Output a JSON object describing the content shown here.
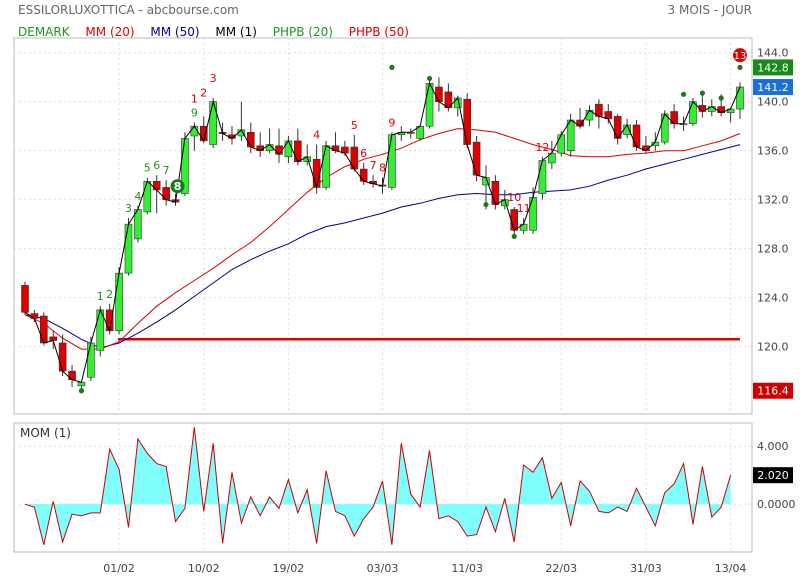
{
  "header": {
    "title": "ESSILORLUXOTTICA - abcbourse.com",
    "period": "3 MOIS - JOUR"
  },
  "legend": [
    {
      "label": "DEMARK",
      "color": "#1a9a1a"
    },
    {
      "label": "MM (20)",
      "color": "#dd0000"
    },
    {
      "label": "MM (50)",
      "color": "#00008b"
    },
    {
      "label": "MM (1)",
      "color": "#000000"
    },
    {
      "label": "PHPB (20)",
      "color": "#1a9a1a"
    },
    {
      "label": "PHPB (50)",
      "color": "#dd0000"
    }
  ],
  "colors": {
    "up": "#33ee33",
    "down": "#dd0000",
    "mm20": "#dd0000",
    "mm50": "#00008b",
    "mm1": "#000000",
    "mom_fill": "#80ffff",
    "mom_line": "#cc0000",
    "grid": "#dddddd"
  },
  "chart_data": [
    {
      "type": "candlestick",
      "title": "ESSILORLUXOTTICA",
      "yticks": [
        "144.0",
        "140.0",
        "136.0",
        "132.0",
        "128.0",
        "124.0",
        "120.0"
      ],
      "ylim": [
        114.5,
        145.2
      ],
      "xtick_labels": [
        {
          "label": "01/02",
          "index": 10
        },
        {
          "label": "10/02",
          "index": 19
        },
        {
          "label": "19/02",
          "index": 28
        },
        {
          "label": "03/03",
          "index": 38
        },
        {
          "label": "11/03",
          "index": 47
        },
        {
          "label": "22/03",
          "index": 57
        },
        {
          "label": "31/03",
          "index": 66
        },
        {
          "label": "13/04",
          "index": 75
        }
      ],
      "last_labels": [
        {
          "text": "142.8",
          "color": "#1a8a1a"
        },
        {
          "text": "141.2",
          "color": "#1a6fd8"
        },
        {
          "text": "116.4",
          "color": "#cc0000"
        }
      ],
      "support_level": 120.6,
      "ohlc": [
        [
          125.0,
          125.3,
          122.6,
          122.8
        ],
        [
          122.7,
          123.0,
          122.0,
          122.3
        ],
        [
          122.5,
          122.8,
          120.1,
          120.3
        ],
        [
          120.8,
          121.3,
          119.8,
          120.5
        ],
        [
          120.3,
          121.0,
          117.6,
          118.0
        ],
        [
          118.0,
          118.5,
          116.7,
          117.3
        ],
        [
          116.8,
          117.2,
          116.4,
          117.1
        ],
        [
          117.5,
          120.8,
          117.2,
          120.3
        ],
        [
          119.7,
          123.3,
          119.2,
          123.0
        ],
        [
          123.0,
          123.5,
          121.0,
          121.3
        ],
        [
          121.3,
          126.5,
          121.0,
          126.0
        ],
        [
          126.0,
          130.5,
          125.8,
          130.0
        ],
        [
          128.8,
          131.5,
          128.5,
          131.2
        ],
        [
          131.0,
          133.8,
          130.8,
          133.5
        ],
        [
          133.5,
          134.0,
          130.9,
          132.8
        ],
        [
          133.0,
          133.6,
          131.5,
          132.0
        ],
        [
          132.0,
          132.5,
          131.5,
          131.8
        ],
        [
          132.5,
          137.5,
          132.3,
          137.0
        ],
        [
          137.2,
          138.3,
          136.0,
          138.0
        ],
        [
          138.0,
          138.8,
          136.6,
          136.8
        ],
        [
          136.5,
          140.3,
          136.2,
          140.0
        ],
        [
          137.5,
          138.3,
          136.8,
          137.4
        ],
        [
          137.3,
          138.0,
          136.5,
          137.0
        ],
        [
          137.2,
          140.0,
          136.8,
          137.7
        ],
        [
          137.5,
          138.3,
          135.8,
          136.3
        ],
        [
          136.4,
          137.5,
          135.5,
          136.0
        ],
        [
          136.0,
          137.8,
          135.8,
          136.5
        ],
        [
          136.4,
          137.8,
          135.0,
          135.7
        ],
        [
          135.5,
          137.2,
          135.0,
          136.8
        ],
        [
          136.8,
          137.8,
          134.8,
          135.1
        ],
        [
          135.1,
          136.5,
          134.8,
          135.5
        ],
        [
          135.3,
          136.5,
          132.5,
          133.0
        ],
        [
          133.0,
          136.8,
          132.8,
          136.4
        ],
        [
          136.4,
          137.5,
          135.8,
          136.0
        ],
        [
          136.3,
          136.8,
          135.6,
          135.8
        ],
        [
          136.3,
          137.3,
          134.3,
          134.5
        ],
        [
          134.5,
          135.0,
          133.2,
          133.5
        ],
        [
          133.5,
          134.0,
          133.0,
          133.3
        ],
        [
          133.2,
          133.8,
          132.5,
          133.1
        ],
        [
          133.0,
          137.5,
          132.8,
          137.3
        ],
        [
          137.3,
          138.0,
          136.8,
          137.5
        ],
        [
          137.4,
          137.8,
          137.0,
          137.5
        ],
        [
          137.0,
          138.0,
          136.8,
          138.0
        ],
        [
          138.0,
          141.8,
          137.8,
          141.5
        ],
        [
          141.2,
          142.0,
          139.2,
          140.0
        ],
        [
          140.8,
          141.5,
          139.2,
          139.5
        ],
        [
          139.5,
          140.5,
          138.8,
          140.3
        ],
        [
          140.2,
          140.7,
          136.2,
          136.5
        ],
        [
          136.7,
          137.2,
          133.5,
          134.0
        ],
        [
          133.2,
          134.8,
          131.2,
          133.8
        ],
        [
          133.5,
          134.0,
          131.2,
          131.6
        ],
        [
          131.5,
          132.8,
          131.2,
          132.0
        ],
        [
          131.2,
          131.4,
          128.8,
          129.5
        ],
        [
          129.5,
          130.5,
          129.2,
          130.0
        ],
        [
          129.5,
          133.0,
          129.2,
          132.2
        ],
        [
          132.5,
          135.5,
          132.0,
          135.2
        ],
        [
          135.0,
          136.8,
          134.5,
          135.8
        ],
        [
          135.8,
          137.6,
          135.5,
          137.3
        ],
        [
          136.0,
          139.0,
          135.5,
          138.5
        ],
        [
          138.5,
          139.5,
          137.8,
          138.0
        ],
        [
          138.5,
          139.7,
          138.0,
          139.3
        ],
        [
          139.8,
          140.2,
          137.8,
          138.8
        ],
        [
          139.2,
          139.8,
          138.2,
          138.6
        ],
        [
          138.8,
          139.0,
          136.5,
          137.0
        ],
        [
          137.3,
          138.6,
          137.0,
          138.1
        ],
        [
          138.1,
          138.5,
          136.0,
          136.3
        ],
        [
          136.4,
          137.2,
          135.8,
          136.0
        ],
        [
          136.4,
          137.5,
          136.0,
          136.7
        ],
        [
          136.7,
          139.3,
          136.5,
          139.0
        ],
        [
          139.2,
          139.8,
          137.8,
          138.2
        ],
        [
          138.2,
          138.8,
          137.6,
          138.2
        ],
        [
          138.2,
          140.3,
          138.0,
          140.0
        ],
        [
          139.7,
          140.5,
          138.7,
          139.2
        ],
        [
          139.2,
          140.2,
          138.8,
          139.6
        ],
        [
          139.6,
          140.6,
          138.8,
          139.1
        ],
        [
          139.1,
          139.5,
          138.3,
          139.4
        ],
        [
          139.4,
          141.6,
          138.6,
          141.2
        ]
      ],
      "mm20": [
        [
          0,
          122.6
        ],
        [
          2,
          121.9
        ],
        [
          4,
          120.7
        ],
        [
          6,
          119.8
        ],
        [
          8,
          119.8
        ],
        [
          10,
          120.4
        ],
        [
          12,
          121.9
        ],
        [
          14,
          123.3
        ],
        [
          16,
          124.4
        ],
        [
          18,
          125.4
        ],
        [
          20,
          126.4
        ],
        [
          22,
          127.5
        ],
        [
          24,
          128.5
        ],
        [
          26,
          129.8
        ],
        [
          28,
          131.2
        ],
        [
          30,
          132.6
        ],
        [
          32,
          133.8
        ],
        [
          34,
          134.7
        ],
        [
          36,
          135.3
        ],
        [
          38,
          135.7
        ],
        [
          40,
          136.2
        ],
        [
          42,
          136.9
        ],
        [
          44,
          137.4
        ],
        [
          46,
          137.8
        ],
        [
          48,
          137.7
        ],
        [
          50,
          137.5
        ],
        [
          52,
          137.0
        ],
        [
          54,
          136.5
        ],
        [
          56,
          136.1
        ],
        [
          58,
          135.6
        ],
        [
          60,
          135.5
        ],
        [
          62,
          135.5
        ],
        [
          64,
          135.7
        ],
        [
          66,
          135.8
        ],
        [
          68,
          136.0
        ],
        [
          70,
          136.0
        ],
        [
          72,
          136.4
        ],
        [
          74,
          136.8
        ],
        [
          76,
          137.4
        ]
      ],
      "mm50": [
        [
          0,
          122.6
        ],
        [
          2,
          122.3
        ],
        [
          4,
          121.5
        ],
        [
          6,
          120.6
        ],
        [
          8,
          119.9
        ],
        [
          10,
          120.3
        ],
        [
          12,
          121.1
        ],
        [
          14,
          122.0
        ],
        [
          16,
          123.0
        ],
        [
          18,
          124.1
        ],
        [
          20,
          125.2
        ],
        [
          22,
          126.3
        ],
        [
          24,
          127.1
        ],
        [
          26,
          127.8
        ],
        [
          28,
          128.4
        ],
        [
          30,
          129.2
        ],
        [
          32,
          129.8
        ],
        [
          34,
          130.1
        ],
        [
          36,
          130.5
        ],
        [
          38,
          130.9
        ],
        [
          40,
          131.4
        ],
        [
          42,
          131.7
        ],
        [
          44,
          132.1
        ],
        [
          46,
          132.4
        ],
        [
          48,
          132.5
        ],
        [
          50,
          132.4
        ],
        [
          52,
          132.4
        ],
        [
          54,
          132.6
        ],
        [
          56,
          132.7
        ],
        [
          58,
          132.8
        ],
        [
          60,
          133.1
        ],
        [
          62,
          133.6
        ],
        [
          64,
          134.0
        ],
        [
          66,
          134.5
        ],
        [
          68,
          134.9
        ],
        [
          70,
          135.3
        ],
        [
          72,
          135.7
        ],
        [
          74,
          136.1
        ],
        [
          76,
          136.5
        ]
      ],
      "demark": [
        [
          8,
          "1",
          "#1a9a1a",
          "above"
        ],
        [
          9,
          "2",
          "#1a9a1a",
          "above"
        ],
        [
          11,
          "3",
          "#1a9a1a",
          "above"
        ],
        [
          12,
          "4",
          "#1a9a1a",
          "above"
        ],
        [
          13,
          "5",
          "#1a9a1a",
          "above"
        ],
        [
          14,
          "6",
          "#1a9a1a",
          "above"
        ],
        [
          15,
          "7",
          "#1a9a1a",
          "above"
        ],
        [
          18,
          "9",
          "#1a9a1a",
          "above"
        ],
        [
          18,
          "1",
          "#dd0000",
          "above2"
        ],
        [
          19,
          "2",
          "#dd0000",
          "above2"
        ],
        [
          20,
          "3",
          "#dd0000",
          "above3"
        ],
        [
          31,
          "4",
          "#dd0000",
          "above"
        ],
        [
          35,
          "5",
          "#dd0000",
          "above"
        ],
        [
          36,
          "6",
          "#dd0000",
          "above"
        ],
        [
          37,
          "7",
          "#dd0000",
          "above"
        ],
        [
          38,
          "8",
          "#dd0000",
          "above"
        ],
        [
          39,
          "9",
          "#dd0000",
          "above"
        ],
        [
          52,
          "10",
          "#dd0000",
          "above"
        ],
        [
          53,
          "11",
          "#dd0000",
          "above"
        ],
        [
          55,
          "12",
          "#dd0000",
          "above"
        ]
      ]
    },
    {
      "type": "area",
      "title": "MOM (1)",
      "yticks": [
        "4.000",
        "0.0000"
      ],
      "ylim": [
        -3.3,
        5.6
      ],
      "last_label": "2.020",
      "values": [
        0.0,
        -0.2,
        -2.8,
        0.2,
        -2.6,
        -0.7,
        -0.8,
        -0.6,
        -0.6,
        3.8,
        2.4,
        -1.6,
        4.5,
        3.5,
        2.8,
        2.6,
        -1.2,
        -0.3,
        5.3,
        -0.5,
        4.2,
        -2.7,
        2.2,
        -1.3,
        0.5,
        -0.8,
        0.5,
        -0.3,
        1.7,
        -0.6,
        1.0,
        -2.7,
        2.3,
        -0.5,
        -0.8,
        -2.2,
        -1.0,
        -0.2,
        1.6,
        -2.8,
        4.2,
        0.7,
        -0.2,
        3.7,
        -1.0,
        -0.8,
        -1.2,
        -2.2,
        -2.1,
        -0.2,
        -1.9,
        0.4,
        -2.6,
        2.7,
        2.2,
        3.2,
        0.4,
        1.5,
        -1.5,
        1.6,
        0.9,
        -0.5,
        -0.6,
        -0.2,
        -0.5,
        1.1,
        -0.2,
        -1.5,
        0.8,
        1.4,
        2.8,
        -1.4,
        2.6,
        -0.9,
        -0.2,
        2.0
      ]
    }
  ]
}
